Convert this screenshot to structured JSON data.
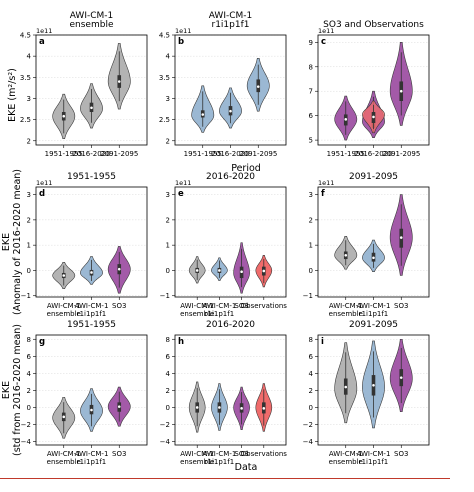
{
  "labels": {
    "period_label": "Period",
    "data_label": "Data",
    "row_ylabels": [
      [
        "EKE (m²/s²)"
      ],
      [
        "EKE",
        "(Anomaly of 2016-2020 mean)"
      ],
      [
        "EKE",
        "(std from 2016-2020 mean)"
      ]
    ]
  },
  "colors": {
    "gray": "#b3b3b3",
    "blue": "#9bb8d3",
    "purple": "#a35aa8",
    "red": "#ef6b6b"
  },
  "chart_data": [
    {
      "type": "violin",
      "letter": "a",
      "title": [
        "AWI-CM-1",
        "ensemble"
      ],
      "exponent": "1e11",
      "categories": [
        "1951-1955",
        "2016-2020",
        "2091-2095"
      ],
      "yticks": [
        2.0,
        2.5,
        3.0,
        3.5,
        4.0,
        4.5
      ],
      "ylim": [
        1.9,
        4.5
      ],
      "violins": [
        {
          "category": 0,
          "color": "gray",
          "min": 2.05,
          "max": 3.1,
          "q1": 2.48,
          "median": 2.58,
          "q3": 2.68,
          "mode": 2.58
        },
        {
          "category": 1,
          "color": "gray",
          "min": 2.3,
          "max": 3.35,
          "q1": 2.68,
          "median": 2.78,
          "q3": 2.9,
          "mode": 2.76
        },
        {
          "category": 2,
          "color": "gray",
          "min": 2.75,
          "max": 4.3,
          "q1": 3.25,
          "median": 3.4,
          "q3": 3.55,
          "mode": 3.4
        }
      ]
    },
    {
      "type": "violin",
      "letter": "b",
      "title": [
        "AWI-CM-1",
        "r1i1p1f1"
      ],
      "exponent": "1e11",
      "categories": [
        "1951-1955",
        "2016-2020",
        "2091-2095"
      ],
      "yticks": [
        2.0,
        2.5,
        3.0,
        3.5,
        4.0,
        4.5
      ],
      "ylim": [
        1.9,
        4.5
      ],
      "violins": [
        {
          "category": 0,
          "color": "blue",
          "min": 2.2,
          "max": 3.3,
          "q1": 2.55,
          "median": 2.62,
          "q3": 2.72,
          "mode": 2.6
        },
        {
          "category": 1,
          "color": "blue",
          "min": 2.3,
          "max": 3.25,
          "q1": 2.6,
          "median": 2.7,
          "q3": 2.82,
          "mode": 2.7
        },
        {
          "category": 2,
          "color": "blue",
          "min": 2.7,
          "max": 3.95,
          "q1": 3.15,
          "median": 3.28,
          "q3": 3.45,
          "mode": 3.3
        }
      ]
    },
    {
      "type": "violin",
      "letter": "c",
      "title": [
        "SO3 and Observations"
      ],
      "exponent": "1e11",
      "categories": [
        "1951-1955",
        "2016-2020",
        "2091-2095"
      ],
      "yticks": [
        5,
        6,
        7,
        8,
        9
      ],
      "ylim": [
        4.8,
        9.3
      ],
      "violins": [
        {
          "category": 0,
          "color": "purple",
          "min": 5.0,
          "max": 6.8,
          "q1": 5.6,
          "median": 5.85,
          "q3": 6.05,
          "mode": 5.85
        },
        {
          "category": 1,
          "color": "purple",
          "min": 5.1,
          "max": 7.0,
          "q1": 5.5,
          "median": 5.9,
          "q3": 6.1,
          "mode": 5.75
        },
        {
          "category": 1,
          "color": "red",
          "opacity": 0.8,
          "min": 5.3,
          "max": 6.6,
          "q1": 5.7,
          "median": 5.95,
          "q3": 6.15,
          "mode": 6.05
        },
        {
          "category": 2,
          "color": "purple",
          "min": 5.6,
          "max": 9.0,
          "q1": 6.6,
          "median": 7.0,
          "q3": 7.4,
          "mode": 7.0
        }
      ]
    },
    {
      "type": "violin",
      "letter": "d",
      "title": [
        "1951-1955"
      ],
      "exponent": "1e11",
      "categories": [
        "AWI-CM-1\nensemble",
        "AWI-CM-1\nr1i1p1f1",
        "SO3"
      ],
      "yticks": [
        -1,
        0,
        1,
        2,
        3
      ],
      "ylim": [
        -1.05,
        3.3
      ],
      "violins": [
        {
          "category": 0,
          "color": "gray",
          "min": -0.72,
          "max": 0.32,
          "q1": -0.3,
          "median": -0.2,
          "q3": -0.1,
          "mode": -0.2
        },
        {
          "category": 1,
          "color": "blue",
          "min": -0.55,
          "max": 0.55,
          "q1": -0.2,
          "median": -0.08,
          "q3": 0.02,
          "mode": -0.1
        },
        {
          "category": 2,
          "color": "purple",
          "min": -0.9,
          "max": 0.95,
          "q1": -0.15,
          "median": 0.05,
          "q3": 0.25,
          "mode": 0.05
        }
      ]
    },
    {
      "type": "violin",
      "letter": "e",
      "title": [
        "2016-2020"
      ],
      "exponent": "1e11",
      "categories": [
        "AWI-CM-1\nensemble",
        "AWI-CM-1\nr1i1p1f1",
        "SO3",
        "Observations"
      ],
      "yticks": [
        -1,
        0,
        1,
        2,
        3
      ],
      "ylim": [
        -1.05,
        3.3
      ],
      "violins": [
        {
          "category": 0,
          "color": "gray",
          "min": -0.5,
          "max": 0.55,
          "q1": -0.1,
          "median": 0.0,
          "q3": 0.1,
          "mode": 0.0
        },
        {
          "category": 1,
          "color": "blue",
          "min": -0.4,
          "max": 0.5,
          "q1": -0.1,
          "median": 0.0,
          "q3": 0.1,
          "mode": 0.0
        },
        {
          "category": 2,
          "color": "purple",
          "min": -0.9,
          "max": 1.1,
          "q1": -0.3,
          "median": -0.05,
          "q3": 0.15,
          "mode": -0.1
        },
        {
          "category": 3,
          "color": "red",
          "min": -0.65,
          "max": 0.6,
          "q1": -0.2,
          "median": -0.02,
          "q3": 0.15,
          "mode": 0.0
        }
      ]
    },
    {
      "type": "violin",
      "letter": "f",
      "title": [
        "2091-2095"
      ],
      "exponent": "1e11",
      "categories": [
        "AWI-CM-1\nensemble",
        "AWI-CM-1\nr1i1p1f1",
        "SO3"
      ],
      "yticks": [
        -1,
        0,
        1,
        2,
        3
      ],
      "ylim": [
        -1.05,
        3.3
      ],
      "violins": [
        {
          "category": 0,
          "color": "gray",
          "min": 0.05,
          "max": 1.35,
          "q1": 0.45,
          "median": 0.6,
          "q3": 0.75,
          "mode": 0.6
        },
        {
          "category": 1,
          "color": "blue",
          "min": -0.05,
          "max": 1.2,
          "q1": 0.35,
          "median": 0.5,
          "q3": 0.7,
          "mode": 0.5
        },
        {
          "category": 2,
          "color": "purple",
          "min": -0.2,
          "max": 3.0,
          "q1": 0.9,
          "median": 1.3,
          "q3": 1.65,
          "mode": 1.3
        }
      ]
    },
    {
      "type": "violin",
      "letter": "g",
      "title": [
        "1951-1955"
      ],
      "exponent": "",
      "categories": [
        "AWI-CM-1\nensemble",
        "AWI-CM-1\nr1i1p1f1",
        "SO3"
      ],
      "yticks": [
        -4,
        -2,
        0,
        2,
        4,
        6,
        8
      ],
      "ylim": [
        -4.4,
        8.5
      ],
      "violins": [
        {
          "category": 0,
          "color": "gray",
          "min": -3.6,
          "max": 1.2,
          "q1": -1.6,
          "median": -1.1,
          "q3": -0.6,
          "mode": -1.2
        },
        {
          "category": 1,
          "color": "blue",
          "min": -2.8,
          "max": 2.2,
          "q1": -0.8,
          "median": -0.3,
          "q3": 0.3,
          "mode": -0.4
        },
        {
          "category": 2,
          "color": "purple",
          "min": -2.2,
          "max": 2.4,
          "q1": -0.5,
          "median": 0.1,
          "q3": 0.6,
          "mode": 0.1
        }
      ]
    },
    {
      "type": "violin",
      "letter": "h",
      "title": [
        "2016-2020"
      ],
      "exponent": "",
      "categories": [
        "AWI-CM-1\nensemble",
        "AWI-CM-1\nr1i1p1f1",
        "SO3",
        "Observations"
      ],
      "yticks": [
        -4,
        -2,
        0,
        2,
        4,
        6,
        8
      ],
      "ylim": [
        -4.4,
        8.5
      ],
      "violins": [
        {
          "category": 0,
          "color": "gray",
          "min": -2.9,
          "max": 3.0,
          "q1": -0.6,
          "median": 0.0,
          "q3": 0.6,
          "mode": 0.0
        },
        {
          "category": 1,
          "color": "blue",
          "min": -2.7,
          "max": 2.8,
          "q1": -0.6,
          "median": 0.0,
          "q3": 0.6,
          "mode": 0.0
        },
        {
          "category": 2,
          "color": "purple",
          "min": -2.6,
          "max": 2.4,
          "q1": -0.6,
          "median": -0.1,
          "q3": 0.5,
          "mode": 0.0
        },
        {
          "category": 3,
          "color": "red",
          "min": -2.8,
          "max": 2.8,
          "q1": -0.7,
          "median": -0.1,
          "q3": 0.6,
          "mode": 0.0
        }
      ]
    },
    {
      "type": "violin",
      "letter": "i",
      "title": [
        "2091-2095"
      ],
      "exponent": "",
      "categories": [
        "AWI-CM-1\nensemble",
        "AWI-CM-1\nr1i1p1f1",
        "SO3"
      ],
      "yticks": [
        -4,
        -2,
        0,
        2,
        4,
        6,
        8
      ],
      "ylim": [
        -4.4,
        8.5
      ],
      "violins": [
        {
          "category": 0,
          "color": "gray",
          "min": -1.8,
          "max": 7.6,
          "q1": 1.5,
          "median": 2.4,
          "q3": 3.4,
          "mode": 2.2
        },
        {
          "category": 1,
          "color": "blue",
          "min": -2.4,
          "max": 7.8,
          "q1": 1.4,
          "median": 2.6,
          "q3": 3.8,
          "mode": 2.4
        },
        {
          "category": 2,
          "color": "purple",
          "min": -0.5,
          "max": 8.0,
          "q1": 2.5,
          "median": 3.5,
          "q3": 4.5,
          "mode": 3.4
        }
      ]
    }
  ]
}
